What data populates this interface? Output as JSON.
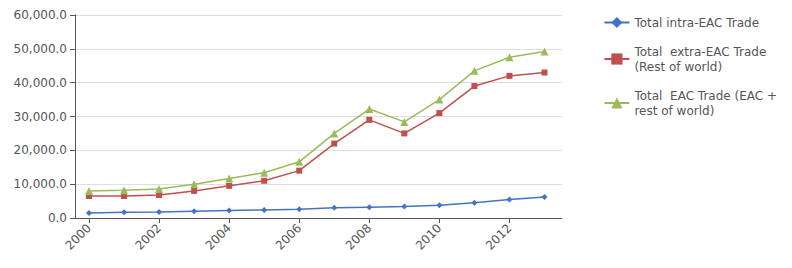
{
  "chart_data": {
    "type": "line",
    "x": [
      2000,
      2001,
      2002,
      2003,
      2004,
      2005,
      2006,
      2007,
      2008,
      2009,
      2010,
      2011,
      2012,
      2013
    ],
    "series": [
      {
        "name": "Total intra-EAC Trade",
        "color": "#4472c4",
        "marker": "diamond",
        "values": [
          1500,
          1700,
          1800,
          2000,
          2200,
          2400,
          2600,
          3000,
          3200,
          3400,
          3800,
          4500,
          5500,
          6200
        ]
      },
      {
        "name": "Total  extra-EAC Trade\n(Rest of world)",
        "color": "#c0504d",
        "marker": "square",
        "values": [
          6500,
          6500,
          6800,
          8000,
          9500,
          11000,
          14000,
          22000,
          29000,
          25000,
          31000,
          39000,
          42000,
          43000
        ]
      },
      {
        "name": "Total  EAC Trade (EAC +\nrest of world)",
        "color": "#9bbb59",
        "marker": "triangle",
        "values": [
          8000,
          8200,
          8600,
          10000,
          11700,
          13400,
          16600,
          25000,
          32200,
          28400,
          35000,
          43500,
          47500,
          49200
        ]
      }
    ],
    "xlim": [
      1999.6,
      2013.5
    ],
    "xticks": [
      2000,
      2002,
      2004,
      2006,
      2008,
      2010,
      2012
    ],
    "ylim": [
      0,
      60000
    ],
    "yticks": [
      {
        "value": 0,
        "label": "0.0"
      },
      {
        "value": 10000,
        "label": "10,000.0"
      },
      {
        "value": 20000,
        "label": "20,000.0"
      },
      {
        "value": 30000,
        "label": "30,000.0"
      },
      {
        "value": 40000,
        "label": "40,000.0"
      },
      {
        "value": 50000,
        "label": "50,000.0"
      },
      {
        "value": 60000,
        "label": "60,000.0"
      }
    ],
    "grid": true,
    "legend": "upper right"
  }
}
